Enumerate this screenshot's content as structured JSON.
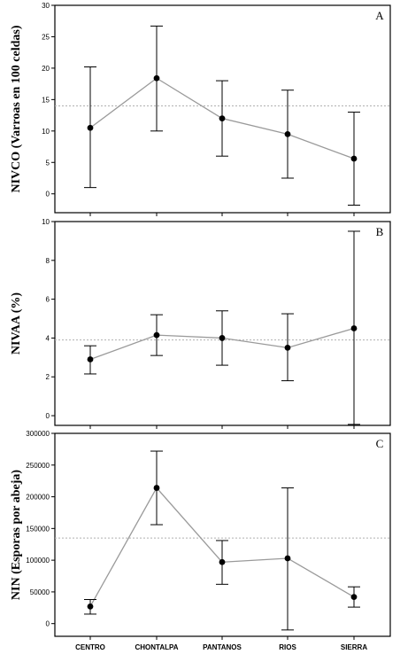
{
  "chart_data": [
    {
      "type": "line",
      "panel": "A",
      "ylabel": "NIVCO (Varroas en 100 celdas)",
      "categories": [
        "CENTRO",
        "CHONTALPA",
        "PANTANOS",
        "RIOS",
        "SIERRA"
      ],
      "ylim": [
        -3,
        30
      ],
      "yticks": [
        0,
        5,
        10,
        15,
        20,
        25,
        30
      ],
      "ytick_labels": [
        "0",
        "5",
        "10",
        "15",
        "20",
        "25",
        "30"
      ],
      "reference_line": 14,
      "series": [
        {
          "values": [
            10.5,
            18.4,
            12.0,
            9.5,
            5.6
          ],
          "lower": [
            1.0,
            10.0,
            6.0,
            2.5,
            -1.8
          ],
          "upper": [
            20.2,
            26.7,
            18.0,
            16.5,
            13.0
          ]
        }
      ],
      "grid": false,
      "show_xlabels": false
    },
    {
      "type": "line",
      "panel": "B",
      "ylabel": "NIVAA (%)",
      "categories": [
        "CENTRO",
        "CHONTALPA",
        "PANTANOS",
        "RIOS",
        "SIERRA"
      ],
      "ylim": [
        -0.5,
        10
      ],
      "yticks": [
        0,
        2,
        4,
        6,
        8,
        10
      ],
      "ytick_labels": [
        "0",
        "2",
        "4",
        "6",
        "8",
        "10"
      ],
      "reference_line": 3.9,
      "series": [
        {
          "values": [
            2.9,
            4.15,
            4.0,
            3.5,
            4.5
          ],
          "lower": [
            2.15,
            3.1,
            2.6,
            1.8,
            -0.45
          ],
          "upper": [
            3.6,
            5.2,
            5.4,
            5.25,
            9.5
          ]
        }
      ],
      "grid": false,
      "show_xlabels": false
    },
    {
      "type": "line",
      "panel": "C",
      "ylabel": "NIN (Esporas por abeja)",
      "categories": [
        "CENTRO",
        "CHONTALPA",
        "PANTANOS",
        "RIOS",
        "SIERRA"
      ],
      "ylim": [
        -20000,
        300000
      ],
      "yticks": [
        0,
        50000,
        100000,
        150000,
        200000,
        250000,
        300000
      ],
      "ytick_labels": [
        "0",
        "50000",
        "100000",
        "150000",
        "200000",
        "250000",
        "300000"
      ],
      "reference_line": 135000,
      "series": [
        {
          "values": [
            27000,
            214000,
            97000,
            103000,
            42000
          ],
          "lower": [
            15000,
            156000,
            62000,
            -10000,
            26000
          ],
          "upper": [
            38000,
            272000,
            131000,
            214000,
            58000
          ]
        }
      ],
      "grid": false,
      "show_xlabels": true
    }
  ],
  "colors": {
    "line": "#9a9a9a",
    "point": "#000000",
    "errorbar": "#000000",
    "refline": "#b0b0b0",
    "frame": "#000000"
  }
}
